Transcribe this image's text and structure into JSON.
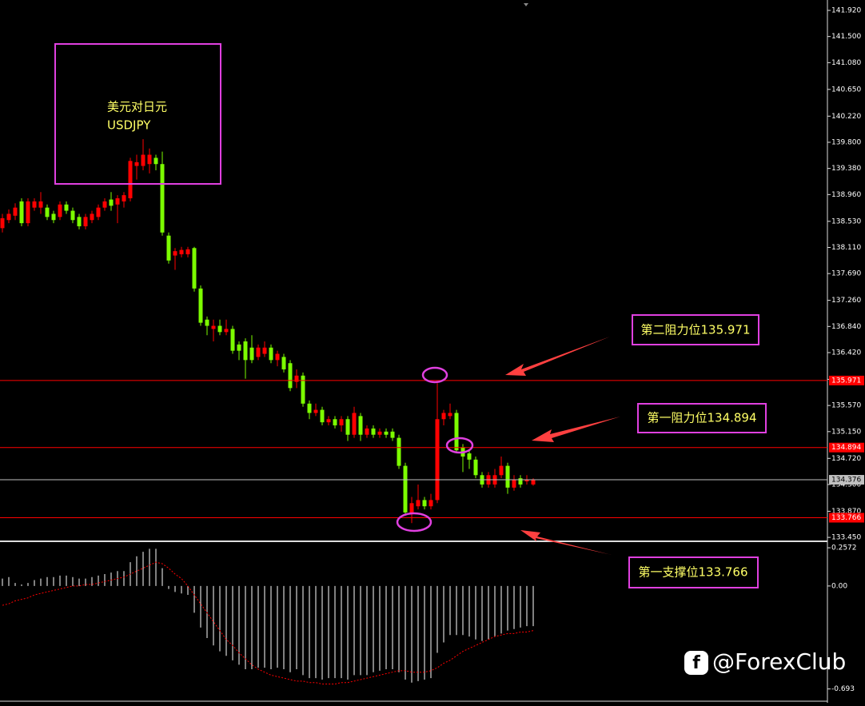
{
  "chart_data": [
    {
      "type": "candlestick",
      "title": "美元对日元",
      "subtitle": "USDJPY",
      "up_color": "#ff0000",
      "down_color": "#7cfc00",
      "open": [
        138.42,
        138.55,
        138.62,
        138.85,
        138.5,
        138.75,
        138.75,
        138.75,
        138.65,
        138.6,
        138.8,
        138.7,
        138.6,
        138.45,
        138.55,
        138.6,
        138.75,
        138.88,
        138.8,
        138.85,
        138.9,
        139.42,
        139.42,
        139.45,
        139.55,
        139.45,
        138.3,
        137.98,
        138.0,
        138.0,
        138.1,
        137.45,
        136.95,
        136.8,
        136.85,
        136.75,
        136.8,
        136.55,
        136.6,
        136.5,
        136.35,
        136.4,
        136.5,
        136.3,
        136.35,
        136.25,
        135.95,
        136.05,
        135.6,
        135.45,
        135.5,
        135.3,
        135.35,
        135.25,
        135.35,
        135.1,
        135.4,
        135.1,
        135.2,
        135.1,
        135.15,
        135.15,
        135.05,
        134.6,
        133.85,
        133.95,
        134.05,
        133.95,
        134.05,
        135.35,
        135.4,
        135.45,
        134.9,
        134.8,
        134.7,
        134.45,
        134.3,
        134.3,
        134.45,
        134.6,
        134.25,
        134.4,
        134.35,
        134.3
      ],
      "high": [
        138.65,
        138.72,
        138.82,
        138.9,
        138.9,
        138.9,
        139.0,
        138.8,
        138.7,
        138.85,
        138.85,
        138.75,
        138.65,
        138.65,
        138.7,
        138.8,
        138.9,
        139.0,
        138.95,
        139.0,
        139.55,
        139.6,
        139.85,
        139.7,
        139.6,
        139.65,
        138.35,
        138.1,
        138.12,
        138.12,
        138.12,
        137.5,
        137.0,
        136.95,
        136.95,
        136.95,
        136.85,
        136.6,
        136.65,
        136.7,
        136.55,
        136.6,
        136.55,
        136.45,
        136.4,
        136.3,
        136.15,
        136.1,
        135.65,
        135.6,
        135.55,
        135.4,
        135.4,
        135.4,
        135.4,
        135.55,
        135.45,
        135.25,
        135.25,
        135.2,
        135.2,
        135.2,
        135.1,
        134.65,
        134.1,
        134.3,
        134.1,
        134.15,
        135.93,
        135.5,
        135.6,
        135.5,
        134.95,
        134.85,
        134.75,
        134.5,
        134.5,
        134.55,
        134.75,
        134.65,
        134.45,
        134.45,
        134.45,
        134.4
      ],
      "low": [
        138.35,
        138.5,
        138.55,
        138.45,
        138.45,
        138.7,
        138.65,
        138.55,
        138.5,
        138.55,
        138.65,
        138.5,
        138.4,
        138.4,
        138.5,
        138.55,
        138.7,
        138.7,
        138.5,
        138.75,
        138.85,
        139.2,
        139.35,
        139.3,
        139.35,
        138.3,
        137.85,
        137.75,
        137.95,
        137.95,
        137.4,
        136.85,
        136.7,
        136.6,
        136.7,
        136.7,
        136.4,
        136.3,
        136.0,
        136.25,
        136.3,
        136.35,
        136.25,
        136.2,
        136.1,
        135.8,
        135.85,
        135.55,
        135.35,
        135.4,
        135.25,
        135.25,
        135.2,
        135.15,
        135.0,
        135.05,
        135.0,
        135.05,
        135.05,
        135.05,
        135.05,
        135.0,
        134.55,
        133.8,
        133.68,
        133.9,
        133.9,
        133.9,
        134.0,
        135.25,
        135.35,
        134.8,
        134.5,
        134.55,
        134.4,
        134.25,
        134.25,
        134.25,
        134.4,
        134.15,
        134.2,
        134.25,
        134.3,
        134.28
      ],
      "close": [
        138.58,
        138.65,
        138.75,
        138.5,
        138.85,
        138.85,
        138.85,
        138.6,
        138.55,
        138.8,
        138.7,
        138.55,
        138.45,
        138.6,
        138.65,
        138.75,
        138.85,
        138.78,
        138.9,
        138.95,
        139.5,
        139.48,
        139.6,
        139.6,
        139.45,
        138.35,
        137.9,
        138.05,
        138.07,
        138.08,
        137.45,
        136.9,
        136.85,
        136.85,
        136.75,
        136.8,
        136.45,
        136.45,
        136.3,
        136.3,
        136.5,
        136.5,
        136.3,
        136.4,
        136.15,
        135.85,
        136.05,
        135.6,
        135.45,
        135.5,
        135.3,
        135.35,
        135.25,
        135.35,
        135.1,
        135.45,
        135.1,
        135.2,
        135.1,
        135.15,
        135.1,
        135.05,
        134.6,
        133.85,
        134.0,
        134.05,
        133.95,
        134.05,
        135.35,
        135.45,
        135.45,
        134.85,
        134.75,
        134.7,
        134.45,
        134.3,
        134.45,
        134.45,
        134.6,
        134.25,
        134.38,
        134.3,
        134.38,
        134.376
      ],
      "ylim": [
        133.4,
        142.087
      ],
      "yticks": [
        {
          "value": 141.92,
          "label": "141.920"
        },
        {
          "value": 141.5,
          "label": "141.500"
        },
        {
          "value": 141.08,
          "label": "141.080"
        },
        {
          "value": 140.65,
          "label": "140.650"
        },
        {
          "value": 140.22,
          "label": "140.220"
        },
        {
          "value": 139.8,
          "label": "139.800"
        },
        {
          "value": 139.38,
          "label": "139.380"
        },
        {
          "value": 138.96,
          "label": "138.960"
        },
        {
          "value": 138.53,
          "label": "138.530"
        },
        {
          "value": 138.11,
          "label": "138.110"
        },
        {
          "value": 137.69,
          "label": "137.690"
        },
        {
          "value": 137.26,
          "label": "137.260"
        },
        {
          "value": 136.84,
          "label": "136.840"
        },
        {
          "value": 136.42,
          "label": "136.420"
        },
        {
          "value": 135.99,
          "label": "135.990"
        },
        {
          "value": 135.57,
          "label": "135.570"
        },
        {
          "value": 135.15,
          "label": "135.150"
        },
        {
          "value": 134.72,
          "label": "134.720"
        },
        {
          "value": 134.3,
          "label": "134.300"
        },
        {
          "value": 133.87,
          "label": "133.870"
        },
        {
          "value": 133.45,
          "label": "133.450"
        }
      ],
      "levels": [
        {
          "value": 135.971,
          "color": "#ff0000"
        },
        {
          "value": 134.894,
          "color": "#ff0000"
        },
        {
          "value": 133.766,
          "color": "#ff0000"
        },
        {
          "value": 134.376,
          "color": "#c0c0c0"
        }
      ],
      "annotations": [
        "第二阻力位135.971",
        "第一阻力位134.894",
        "第一支撑位133.766"
      ]
    },
    {
      "type": "macd",
      "values": [
        0.05,
        0.06,
        0.02,
        0.01,
        0.02,
        0.04,
        0.05,
        0.06,
        0.06,
        0.07,
        0.07,
        0.06,
        0.05,
        0.05,
        0.06,
        0.07,
        0.08,
        0.09,
        0.1,
        0.1,
        0.16,
        0.2,
        0.23,
        0.25,
        0.25,
        0.12,
        -0.02,
        -0.04,
        -0.05,
        -0.06,
        -0.18,
        -0.28,
        -0.35,
        -0.4,
        -0.44,
        -0.47,
        -0.5,
        -0.53,
        -0.56,
        -0.56,
        -0.55,
        -0.55,
        -0.56,
        -0.55,
        -0.56,
        -0.58,
        -0.56,
        -0.6,
        -0.62,
        -0.62,
        -0.63,
        -0.62,
        -0.62,
        -0.62,
        -0.63,
        -0.6,
        -0.6,
        -0.6,
        -0.58,
        -0.57,
        -0.56,
        -0.56,
        -0.58,
        -0.63,
        -0.65,
        -0.64,
        -0.63,
        -0.62,
        -0.45,
        -0.38,
        -0.33,
        -0.33,
        -0.33,
        -0.34,
        -0.36,
        -0.37,
        -0.36,
        -0.34,
        -0.32,
        -0.3,
        -0.29,
        -0.28,
        -0.27,
        -0.27
      ],
      "signal": [
        -0.13,
        -0.12,
        -0.1,
        -0.09,
        -0.08,
        -0.06,
        -0.05,
        -0.04,
        -0.03,
        -0.02,
        -0.01,
        0.0,
        0.0,
        0.01,
        0.01,
        0.02,
        0.03,
        0.04,
        0.05,
        0.06,
        0.08,
        0.1,
        0.12,
        0.14,
        0.16,
        0.15,
        0.12,
        0.08,
        0.05,
        0.0,
        -0.06,
        -0.12,
        -0.18,
        -0.24,
        -0.3,
        -0.36,
        -0.4,
        -0.45,
        -0.49,
        -0.53,
        -0.56,
        -0.58,
        -0.6,
        -0.61,
        -0.62,
        -0.63,
        -0.64,
        -0.64,
        -0.65,
        -0.65,
        -0.66,
        -0.66,
        -0.66,
        -0.65,
        -0.65,
        -0.64,
        -0.63,
        -0.62,
        -0.61,
        -0.6,
        -0.59,
        -0.58,
        -0.57,
        -0.57,
        -0.58,
        -0.58,
        -0.58,
        -0.57,
        -0.55,
        -0.52,
        -0.5,
        -0.47,
        -0.44,
        -0.42,
        -0.4,
        -0.38,
        -0.36,
        -0.34,
        -0.33,
        -0.32,
        -0.32,
        -0.31,
        -0.31,
        -0.3
      ],
      "bar_color": "#ffffff",
      "signal_color": "#ff0000",
      "ylim": [
        -0.77,
        0.29
      ],
      "yticks": [
        0.2572,
        {
          "value": 0,
          "label": "0.00"
        },
        -0.693
      ]
    }
  ],
  "watermark": "@ForexClub"
}
